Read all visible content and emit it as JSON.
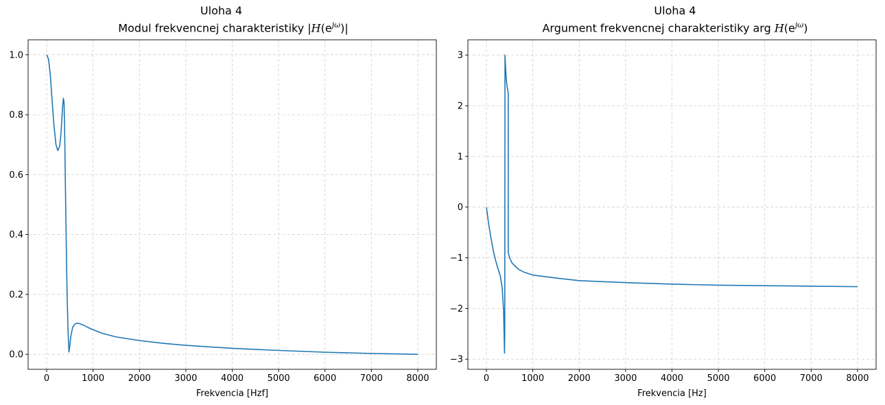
{
  "chart_data": [
    {
      "type": "line",
      "title": "Uloha 4",
      "subtitle": {
        "prefix": "Modul frekvencnej charakteristiky |",
        "func": "H",
        "open": "(e",
        "exp": "jω",
        "close": ")|"
      },
      "xlabel": "Frekvencia [Hzf]",
      "ylabel": "",
      "xlim": [
        -400,
        8400
      ],
      "ylim": [
        -0.05,
        1.05
      ],
      "xticks": [
        0,
        1000,
        2000,
        3000,
        4000,
        5000,
        6000,
        7000,
        8000
      ],
      "yticks": [
        0.0,
        0.2,
        0.4,
        0.6,
        0.8,
        1.0
      ],
      "ytick_labels": [
        "0.0",
        "0.2",
        "0.4",
        "0.6",
        "0.8",
        "1.0"
      ],
      "grid": true,
      "line_color": "#1f77b4",
      "series": [
        {
          "x": [
            0,
            40,
            80,
            120,
            160,
            200,
            240,
            280,
            310,
            340,
            360,
            375,
            390,
            400,
            420,
            440,
            460,
            480,
            500,
            520,
            560,
            600,
            650,
            700,
            800,
            900,
            1000,
            1200,
            1500,
            2000,
            2500,
            3000,
            3500,
            4000,
            5000,
            6000,
            7000,
            8000
          ],
          "y": [
            1.0,
            0.985,
            0.93,
            0.84,
            0.76,
            0.7,
            0.68,
            0.695,
            0.74,
            0.82,
            0.855,
            0.84,
            0.72,
            0.6,
            0.39,
            0.2,
            0.08,
            0.008,
            0.03,
            0.06,
            0.09,
            0.1,
            0.104,
            0.103,
            0.097,
            0.089,
            0.082,
            0.07,
            0.058,
            0.046,
            0.037,
            0.03,
            0.025,
            0.02,
            0.013,
            0.007,
            0.003,
            0.0
          ]
        }
      ]
    },
    {
      "type": "line",
      "title": "Uloha 4",
      "subtitle": {
        "prefix": "Argument frekvencnej charakteristiky arg ",
        "func": "H",
        "open": "(e",
        "exp": "jω",
        "close": ")"
      },
      "xlabel": "Frekvencia [Hz]",
      "ylabel": "",
      "xlim": [
        -400,
        8400
      ],
      "ylim": [
        -3.2,
        3.3
      ],
      "xticks": [
        0,
        1000,
        2000,
        3000,
        4000,
        5000,
        6000,
        7000,
        8000
      ],
      "yticks": [
        -3,
        -2,
        -1,
        0,
        1,
        2,
        3
      ],
      "ytick_labels": [
        "−3",
        "−2",
        "−1",
        "0",
        "1",
        "2",
        "3"
      ],
      "grid": true,
      "line_color": "#1f77b4",
      "series": [
        {
          "x": [
            0,
            50,
            100,
            150,
            200,
            250,
            300,
            340,
            370,
            390,
            395,
            400,
            405,
            410,
            430,
            450,
            470,
            470,
            500,
            550,
            600,
            700,
            800,
            1000,
            1500,
            2000,
            3000,
            4000,
            5000,
            6000,
            7000,
            8000
          ],
          "y": [
            0.0,
            -0.35,
            -0.62,
            -0.87,
            -1.06,
            -1.22,
            -1.36,
            -1.6,
            -2.05,
            -2.88,
            -2.4,
            3.0,
            2.9,
            2.8,
            2.5,
            2.35,
            2.25,
            -0.9,
            -1.0,
            -1.1,
            -1.15,
            -1.23,
            -1.28,
            -1.34,
            -1.4,
            -1.45,
            -1.49,
            -1.52,
            -1.54,
            -1.55,
            -1.56,
            -1.57
          ]
        }
      ]
    }
  ]
}
